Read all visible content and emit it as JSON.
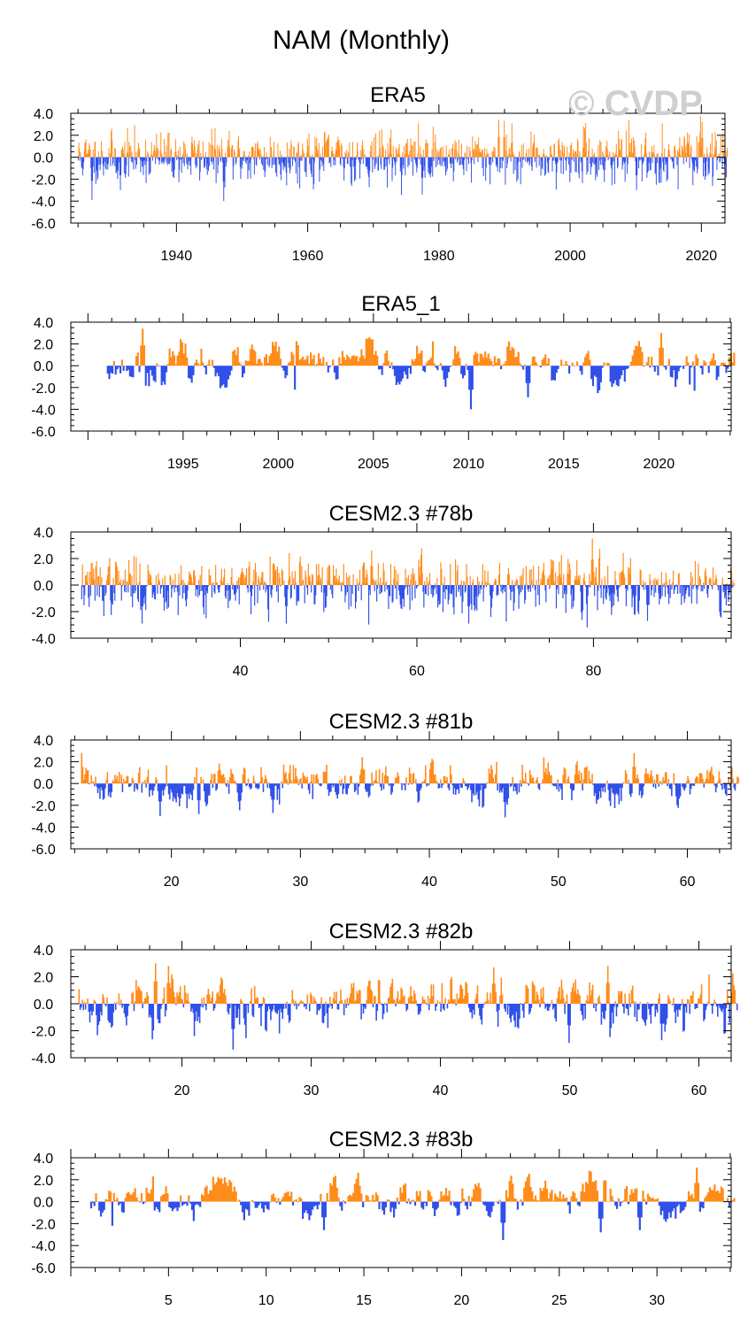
{
  "title": "NAM (Monthly)",
  "watermark": "© CVDP",
  "colors": {
    "positive": "#ff8c1a",
    "negative": "#3050e8",
    "axis": "#000000"
  },
  "chart_data": [
    {
      "type": "bar",
      "title": "ERA5",
      "xlim": [
        1923.9,
        2023.6
      ],
      "ylim": [
        -6,
        4
      ],
      "yticks": [
        4,
        2,
        0,
        -2,
        -4,
        -6
      ],
      "ytick_labels": [
        "4.0",
        "2.0",
        "0.0",
        "-2.0",
        "-4.0",
        "-6.0"
      ],
      "xticks": [
        1940,
        1960,
        1980,
        2000,
        2020
      ],
      "xtick_labels": [
        "1940",
        "1960",
        "1980",
        "2000",
        "2020"
      ],
      "period": [
        1925,
        2023
      ],
      "amplitude": 1.1,
      "smooth": 0.2,
      "seed": 11,
      "extremes": [
        [
          1947.2,
          -4.0
        ],
        [
          1927.1,
          -3.9
        ],
        [
          1977.5,
          -3.4
        ],
        [
          2010.1,
          -3.0
        ],
        [
          1989.1,
          3.4
        ],
        [
          1990.0,
          3.3
        ],
        [
          2020.1,
          3.2
        ],
        [
          1960.2,
          2.2
        ],
        [
          1931.5,
          -3.0
        ]
      ]
    },
    {
      "type": "bar",
      "title": "ERA5_1",
      "xlim": [
        1989.1,
        2023.8
      ],
      "ylim": [
        -6,
        4
      ],
      "yticks": [
        4,
        2,
        0,
        -2,
        -4,
        -6
      ],
      "ytick_labels": [
        "4.0",
        "2.0",
        "0.0",
        "-2.0",
        "-4.0",
        "-6.0"
      ],
      "xticks": [
        1995,
        2000,
        2005,
        2010,
        2015,
        2020
      ],
      "xtick_labels": [
        "1995",
        "2000",
        "2005",
        "2010",
        "2015",
        "2020"
      ],
      "period": [
        1991,
        2023
      ],
      "amplitude": 0.95,
      "smooth": 0.72,
      "seed": 23,
      "extremes": [
        [
          1992.9,
          3.4
        ],
        [
          2010.1,
          -4.0
        ],
        [
          2020.1,
          3.0
        ],
        [
          2013.1,
          -2.9
        ],
        [
          2000.9,
          -2.2
        ],
        [
          2021.9,
          -2.3
        ]
      ]
    },
    {
      "type": "bar",
      "title": "CESM2.3 #78b",
      "xlim": [
        20.8,
        95.6
      ],
      "ylim": [
        -4,
        4
      ],
      "yticks": [
        4,
        2,
        0,
        -2,
        -4
      ],
      "ytick_labels": [
        "4.0",
        "2.0",
        "0.0",
        "-2.0",
        "-4.0"
      ],
      "xticks": [
        40,
        60,
        80
      ],
      "xtick_labels": [
        "40",
        "60",
        "80"
      ],
      "period": [
        22,
        95
      ],
      "amplitude": 1.0,
      "smooth": 0.25,
      "seed": 37,
      "extremes": [
        [
          79.9,
          3.5
        ],
        [
          65.9,
          -2.9
        ],
        [
          28.9,
          -2.9
        ],
        [
          45.2,
          -2.9
        ],
        [
          86.1,
          -2.7
        ],
        [
          54.9,
          2.6
        ]
      ]
    },
    {
      "type": "bar",
      "title": "CESM2.3 #81b",
      "xlim": [
        12.2,
        63.4
      ],
      "ylim": [
        -6,
        4
      ],
      "yticks": [
        4,
        2,
        0,
        -2,
        -4,
        -6
      ],
      "ytick_labels": [
        "4.0",
        "2.0",
        "0.0",
        "-2.0",
        "-4.0",
        "-6.0"
      ],
      "xticks": [
        20,
        30,
        40,
        50,
        60
      ],
      "xtick_labels": [
        "20",
        "30",
        "40",
        "50",
        "60"
      ],
      "period": [
        13,
        63
      ],
      "amplitude": 0.9,
      "smooth": 0.55,
      "seed": 41,
      "extremes": [
        [
          13.0,
          2.8
        ],
        [
          19.1,
          -3.0
        ],
        [
          22.1,
          -2.8
        ],
        [
          27.9,
          -2.7
        ],
        [
          45.9,
          -3.1
        ],
        [
          55.9,
          2.8
        ],
        [
          48.9,
          2.4
        ]
      ]
    },
    {
      "type": "bar",
      "title": "CESM2.3 #82b",
      "xlim": [
        11.4,
        62.5
      ],
      "ylim": [
        -4,
        4
      ],
      "yticks": [
        4,
        2,
        0,
        -2,
        -4
      ],
      "ytick_labels": [
        "4.0",
        "2.0",
        "0.0",
        "-2.0",
        "-4.0"
      ],
      "xticks": [
        20,
        30,
        40,
        50,
        60
      ],
      "xtick_labels": [
        "20",
        "30",
        "40",
        "50",
        "60"
      ],
      "period": [
        12,
        62
      ],
      "amplitude": 0.95,
      "smooth": 0.6,
      "seed": 53,
      "extremes": [
        [
          18.0,
          3.0
        ],
        [
          19.0,
          2.8
        ],
        [
          24.0,
          -3.4
        ],
        [
          21.0,
          -2.4
        ],
        [
          44.1,
          2.7
        ],
        [
          50.0,
          -2.9
        ],
        [
          53.0,
          2.8
        ],
        [
          57.1,
          -2.7
        ]
      ]
    },
    {
      "type": "bar",
      "title": "CESM2.3 #83b",
      "xlim": [
        0.0,
        33.8
      ],
      "ylim": [
        -6,
        4
      ],
      "yticks": [
        4,
        2,
        0,
        -2,
        -4,
        -6
      ],
      "ytick_labels": [
        "4.0",
        "2.0",
        "0.0",
        "-2.0",
        "-4.0",
        "-6.0"
      ],
      "xticks": [
        5,
        10,
        15,
        20,
        25,
        30
      ],
      "xtick_labels": [
        "5",
        "10",
        "15",
        "20",
        "25",
        "30"
      ],
      "period": [
        1,
        33
      ],
      "amplitude": 0.85,
      "smooth": 0.7,
      "seed": 67,
      "extremes": [
        [
          32.0,
          3.1
        ],
        [
          22.1,
          -3.5
        ],
        [
          13.0,
          -2.6
        ],
        [
          2.1,
          -2.2
        ],
        [
          29.1,
          -2.6
        ],
        [
          27.1,
          -2.8
        ],
        [
          4.2,
          2.3
        ]
      ]
    }
  ]
}
